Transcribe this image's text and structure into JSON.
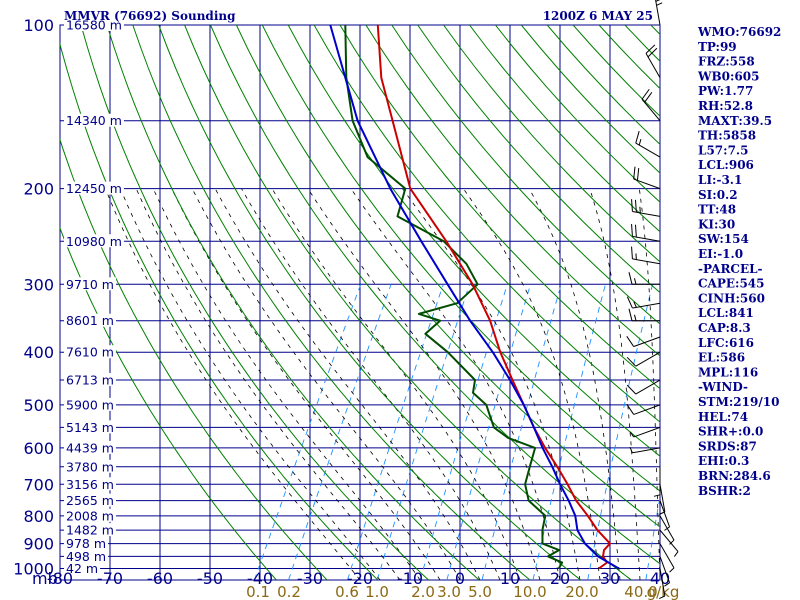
{
  "header": {
    "title": "MMVR (76692) Sounding",
    "time": "1200Z  6 MAY 25"
  },
  "indices": [
    "WMO:76692",
    "TP:99",
    "FRZ:558",
    "WB0:605",
    "PW:1.77",
    "RH:52.8",
    "MAXT:39.5",
    "TH:5858",
    "L57:7.5",
    "LCL:906",
    "LI:-3.1",
    "SI:0.2",
    "TT:48",
    "KI:30",
    "SW:154",
    "EI:-1.0",
    "-PARCEL-",
    "CAPE:545",
    "CINH:560",
    "LCL:841",
    "CAP:8.3",
    "LFC:616",
    "EL:586",
    "MPL:116",
    "-WIND-",
    "STM:219/10",
    "HEL:74",
    "SHR+:0.0",
    "SRDS:87",
    "EHI:0.3",
    "BRN:284.6",
    "BSHR:2"
  ],
  "colors": {
    "grid": "#00008b",
    "dry_adiabat": "#008000",
    "moist_adiabat": "#000000",
    "mixing_ratio": "#1e90ff",
    "temperature": "#cc0000",
    "dewpoint": "#004d00",
    "parcel": "#0000cc",
    "axis_text": "#00008b",
    "mixing_text": "#8b6914",
    "wind_barb": "#000000"
  },
  "chart_data": {
    "type": "skew-t",
    "pressure_axis": {
      "label": "mb",
      "ticks": [
        100,
        200,
        300,
        400,
        500,
        600,
        700,
        800,
        900,
        1000
      ],
      "range": [
        1000,
        100
      ],
      "scale": "log"
    },
    "temperature_axis": {
      "ticks": [
        -80,
        -70,
        -60,
        -50,
        -40,
        -30,
        -20,
        -10,
        0,
        10,
        20,
        30,
        40
      ],
      "range": [
        -80,
        45
      ]
    },
    "height_labels": [
      {
        "p": 100,
        "label": "16580 m"
      },
      {
        "p": 150,
        "label": "14340 m"
      },
      {
        "p": 200,
        "label": "12450 m"
      },
      {
        "p": 250,
        "label": "10980 m"
      },
      {
        "p": 300,
        "label": "9710 m"
      },
      {
        "p": 350,
        "label": "8601 m"
      },
      {
        "p": 400,
        "label": "7610 m"
      },
      {
        "p": 450,
        "label": "6713 m"
      },
      {
        "p": 500,
        "label": "5900 m"
      },
      {
        "p": 550,
        "label": "5143 m"
      },
      {
        "p": 600,
        "label": "4439 m"
      },
      {
        "p": 650,
        "label": "3780 m"
      },
      {
        "p": 700,
        "label": "3156 m"
      },
      {
        "p": 750,
        "label": "2565 m"
      },
      {
        "p": 800,
        "label": "2008 m"
      },
      {
        "p": 850,
        "label": "1482 m"
      },
      {
        "p": 900,
        "label": "978 m"
      },
      {
        "p": 950,
        "label": "498 m"
      },
      {
        "p": 1000,
        "label": "42 m"
      }
    ],
    "mixing_ratio_labels": [
      "0.1",
      "0.2",
      "0.6",
      "1.0",
      "2.0",
      "3.0",
      "5.0",
      "10.0",
      "20.0",
      "40.0",
      "g/kg"
    ],
    "temperature": [
      [
        1000,
        26.5
      ],
      [
        975,
        27.5
      ],
      [
        950,
        26.0
      ],
      [
        925,
        25.5
      ],
      [
        900,
        26.0
      ],
      [
        850,
        22.0
      ],
      [
        800,
        18.5
      ],
      [
        750,
        14.5
      ],
      [
        700,
        11.0
      ],
      [
        650,
        7.0
      ],
      [
        600,
        2.5
      ],
      [
        550,
        -2.0
      ],
      [
        500,
        -6.5
      ],
      [
        450,
        -11.5
      ],
      [
        400,
        -17.0
      ],
      [
        350,
        -22.5
      ],
      [
        300,
        -30.0
      ],
      [
        250,
        -40.0
      ],
      [
        200,
        -53.0
      ],
      [
        150,
        -64.0
      ],
      [
        125,
        -71.0
      ],
      [
        100,
        -77.5
      ]
    ],
    "dewpoint": [
      [
        1000,
        18.5
      ],
      [
        975,
        18.5
      ],
      [
        950,
        15.0
      ],
      [
        925,
        16.5
      ],
      [
        900,
        12.5
      ],
      [
        850,
        11.0
      ],
      [
        800,
        10.0
      ],
      [
        750,
        5.0
      ],
      [
        700,
        2.5
      ],
      [
        650,
        1.5
      ],
      [
        600,
        0.5
      ],
      [
        575,
        -6.0
      ],
      [
        550,
        -10.0
      ],
      [
        500,
        -14.0
      ],
      [
        475,
        -18.0
      ],
      [
        450,
        -19.0
      ],
      [
        400,
        -27.5
      ],
      [
        370,
        -34.0
      ],
      [
        350,
        -32.5
      ],
      [
        340,
        -37.5
      ],
      [
        325,
        -31.0
      ],
      [
        300,
        -29.0
      ],
      [
        275,
        -33.5
      ],
      [
        250,
        -40.5
      ],
      [
        225,
        -52.5
      ],
      [
        200,
        -54.0
      ],
      [
        175,
        -65.0
      ],
      [
        150,
        -72.0
      ],
      [
        125,
        -78.0
      ],
      [
        100,
        -84.0
      ]
    ],
    "parcel": [
      [
        1000,
        30.5
      ],
      [
        950,
        25.0
      ],
      [
        900,
        21.0
      ],
      [
        850,
        18.0
      ],
      [
        800,
        16.0
      ],
      [
        750,
        13.0
      ],
      [
        700,
        9.5
      ],
      [
        650,
        6.0
      ],
      [
        600,
        2.0
      ],
      [
        550,
        -2.0
      ],
      [
        500,
        -6.5
      ],
      [
        450,
        -12.0
      ],
      [
        400,
        -18.5
      ],
      [
        350,
        -26.5
      ],
      [
        300,
        -35.0
      ],
      [
        250,
        -45.0
      ],
      [
        200,
        -57.0
      ],
      [
        150,
        -71.0
      ],
      [
        100,
        -87.0
      ]
    ],
    "wind_barbs": [
      {
        "p": 100,
        "dir": 350,
        "spd": 25
      },
      {
        "p": 125,
        "dir": 330,
        "spd": 20
      },
      {
        "p": 150,
        "dir": 320,
        "spd": 20
      },
      {
        "p": 175,
        "dir": 300,
        "spd": 15
      },
      {
        "p": 200,
        "dir": 290,
        "spd": 20
      },
      {
        "p": 225,
        "dir": 280,
        "spd": 25
      },
      {
        "p": 250,
        "dir": 280,
        "spd": 20
      },
      {
        "p": 275,
        "dir": 280,
        "spd": 15
      },
      {
        "p": 300,
        "dir": 270,
        "spd": 15
      },
      {
        "p": 325,
        "dir": 260,
        "spd": 15
      },
      {
        "p": 350,
        "dir": 270,
        "spd": 15
      },
      {
        "p": 375,
        "dir": 250,
        "spd": 10
      },
      {
        "p": 400,
        "dir": 240,
        "spd": 10
      },
      {
        "p": 450,
        "dir": 240,
        "spd": 10
      },
      {
        "p": 500,
        "dir": 250,
        "spd": 10
      },
      {
        "p": 550,
        "dir": 250,
        "spd": 5
      },
      {
        "p": 600,
        "dir": 260,
        "spd": 5
      },
      {
        "p": 650,
        "dir": 180,
        "spd": 5
      },
      {
        "p": 700,
        "dir": 170,
        "spd": 5
      },
      {
        "p": 750,
        "dir": 160,
        "spd": 5
      },
      {
        "p": 800,
        "dir": 150,
        "spd": 5
      },
      {
        "p": 850,
        "dir": 140,
        "spd": 5
      },
      {
        "p": 900,
        "dir": 150,
        "spd": 5
      },
      {
        "p": 950,
        "dir": 160,
        "spd": 5
      },
      {
        "p": 1000,
        "dir": 170,
        "spd": 5
      }
    ]
  }
}
